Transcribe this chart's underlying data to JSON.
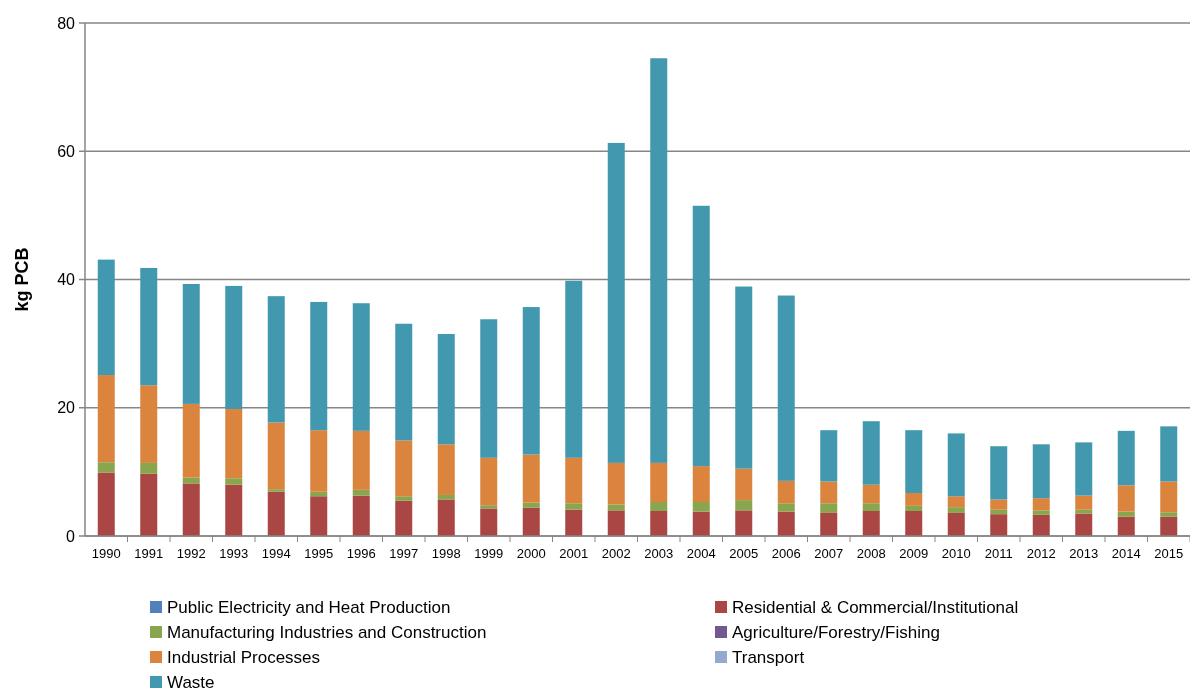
{
  "chart_data": {
    "type": "bar",
    "stacked": true,
    "ylabel": "kg PCB",
    "categories": [
      "1990",
      "1991",
      "1992",
      "1993",
      "1994",
      "1995",
      "1996",
      "1997",
      "1998",
      "1999",
      "2000",
      "2001",
      "2002",
      "2003",
      "2004",
      "2005",
      "2006",
      "2007",
      "2008",
      "2009",
      "2010",
      "2011",
      "2012",
      "2013",
      "2014",
      "2015"
    ],
    "series": [
      {
        "name": "Public Electricity and Heat Production",
        "color": "#4f81bd",
        "values": [
          0,
          0,
          0,
          0,
          0,
          0,
          0,
          0,
          0,
          0,
          0,
          0,
          0,
          0,
          0,
          0,
          0,
          0,
          0,
          0,
          0,
          0,
          0,
          0,
          0,
          0
        ]
      },
      {
        "name": "Residential & Commercial/Institutional",
        "color": "#aa4643",
        "values": [
          9.9,
          9.7,
          8.2,
          8.0,
          6.9,
          6.2,
          6.3,
          5.5,
          5.7,
          4.3,
          4.4,
          4.1,
          4.0,
          3.9,
          3.8,
          4.0,
          3.8,
          3.6,
          3.9,
          3.9,
          3.6,
          3.4,
          3.3,
          3.5,
          3.0,
          3.0
        ]
      },
      {
        "name": "Manufacturing Industries and Construction",
        "color": "#89a54e",
        "values": [
          1.6,
          1.7,
          0.9,
          1.0,
          0.4,
          0.7,
          0.9,
          0.7,
          0.7,
          0.5,
          0.8,
          1.0,
          0.9,
          1.4,
          1.5,
          1.6,
          1.3,
          1.5,
          1.2,
          0.8,
          0.9,
          0.7,
          0.7,
          0.6,
          0.8,
          0.7
        ]
      },
      {
        "name": "Agriculture/Forestry/Fishing",
        "color": "#71588f",
        "values": [
          0,
          0,
          0,
          0,
          0,
          0,
          0,
          0,
          0,
          0,
          0,
          0,
          0,
          0,
          0,
          0,
          0,
          0,
          0,
          0,
          0,
          0,
          0,
          0,
          0,
          0
        ]
      },
      {
        "name": "Industrial Processes",
        "color": "#db843d",
        "values": [
          13.6,
          12.1,
          11.5,
          10.8,
          10.4,
          9.6,
          9.2,
          8.7,
          7.9,
          7.4,
          7.5,
          7.1,
          6.5,
          6.1,
          5.6,
          4.9,
          3.5,
          3.4,
          2.9,
          2.0,
          1.7,
          1.6,
          1.9,
          2.2,
          4.1,
          4.8
        ]
      },
      {
        "name": "Transport",
        "color": "#93a9cf",
        "values": [
          0,
          0,
          0,
          0,
          0,
          0,
          0,
          0,
          0,
          0,
          0,
          0,
          0,
          0,
          0,
          0,
          0,
          0,
          0,
          0,
          0,
          0,
          0,
          0,
          0,
          0
        ]
      },
      {
        "name": "Waste",
        "color": "#4198af",
        "values": [
          18.0,
          18.3,
          18.7,
          19.2,
          19.7,
          20.0,
          19.9,
          18.2,
          17.2,
          21.6,
          23.0,
          27.6,
          49.9,
          63.1,
          40.6,
          28.4,
          28.9,
          8.0,
          9.9,
          9.8,
          9.8,
          8.3,
          8.4,
          8.3,
          8.5,
          8.6
        ]
      }
    ],
    "ylim": [
      0,
      80
    ],
    "yticks": [
      0,
      20,
      40,
      60,
      80
    ],
    "grid": "y",
    "legend": "bottom"
  }
}
